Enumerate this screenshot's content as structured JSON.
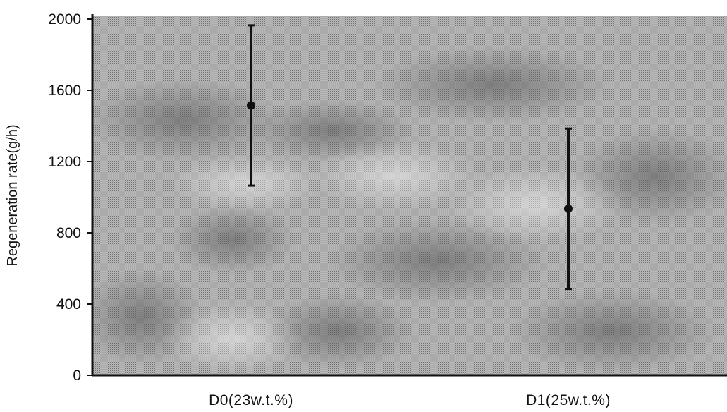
{
  "chart_data": {
    "type": "scatter",
    "categories": [
      "D0(23w.t.%)",
      "D1(25w.t.%)"
    ],
    "series": [
      {
        "values": [
          1515,
          935
        ],
        "error_low": [
          1065,
          485
        ],
        "error_high": [
          1965,
          1385
        ]
      }
    ],
    "title": "",
    "xlabel": "",
    "ylabel": "Regeneration rate(g/h)",
    "ylim": [
      0,
      2000
    ],
    "yticks": [
      0,
      400,
      800,
      1200,
      1600,
      2000
    ],
    "grid": false,
    "colors": {
      "marker": "#111111",
      "axis": "#111111",
      "plot_background": "#a9a9a9"
    }
  }
}
